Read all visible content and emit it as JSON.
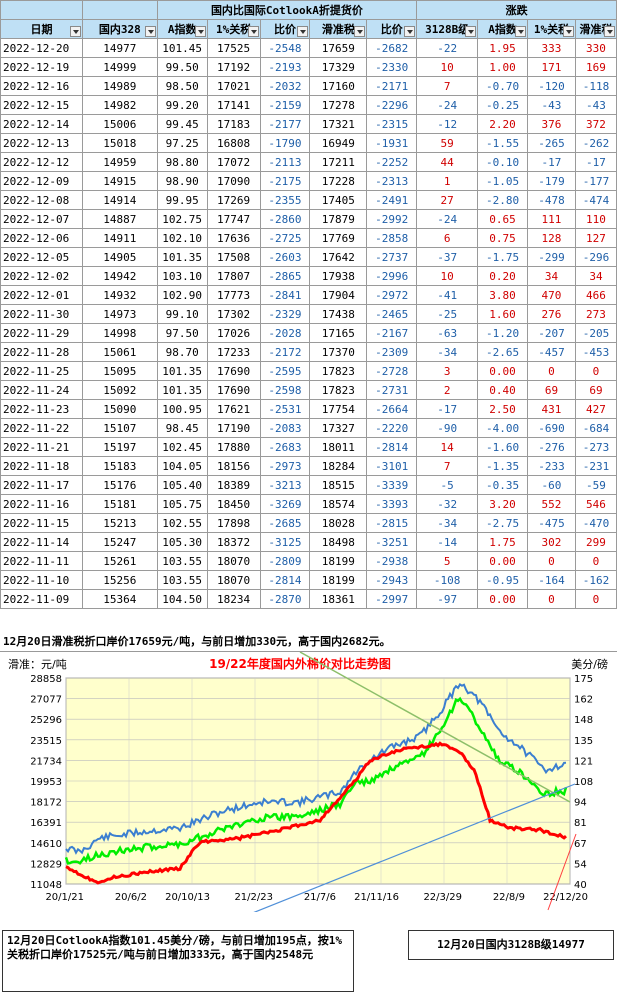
{
  "table": {
    "group_header": "国内比国际CotlookA折提货价",
    "change_header": "涨跌",
    "columns": [
      "日期",
      "国内328",
      "A指数",
      "1%关税",
      "比价",
      "滑准税",
      "比价",
      "3128B级",
      "A指数",
      "1%关税",
      "滑准税"
    ],
    "rows": [
      [
        "2022-12-20",
        "14977",
        "101.45",
        "17525",
        "-2548",
        "17659",
        "-2682",
        "-22",
        "1.95",
        "333",
        "330"
      ],
      [
        "2022-12-19",
        "14999",
        "99.50",
        "17192",
        "-2193",
        "17329",
        "-2330",
        "10",
        "1.00",
        "171",
        "169"
      ],
      [
        "2022-12-16",
        "14989",
        "98.50",
        "17021",
        "-2032",
        "17160",
        "-2171",
        "7",
        "-0.70",
        "-120",
        "-118"
      ],
      [
        "2022-12-15",
        "14982",
        "99.20",
        "17141",
        "-2159",
        "17278",
        "-2296",
        "-24",
        "-0.25",
        "-43",
        "-43"
      ],
      [
        "2022-12-14",
        "15006",
        "99.45",
        "17183",
        "-2177",
        "17321",
        "-2315",
        "-12",
        "2.20",
        "376",
        "372"
      ],
      [
        "2022-12-13",
        "15018",
        "97.25",
        "16808",
        "-1790",
        "16949",
        "-1931",
        "59",
        "-1.55",
        "-265",
        "-262"
      ],
      [
        "2022-12-12",
        "14959",
        "98.80",
        "17072",
        "-2113",
        "17211",
        "-2252",
        "44",
        "-0.10",
        "-17",
        "-17"
      ],
      [
        "2022-12-09",
        "14915",
        "98.90",
        "17090",
        "-2175",
        "17228",
        "-2313",
        "1",
        "-1.05",
        "-179",
        "-177"
      ],
      [
        "2022-12-08",
        "14914",
        "99.95",
        "17269",
        "-2355",
        "17405",
        "-2491",
        "27",
        "-2.80",
        "-478",
        "-474"
      ],
      [
        "2022-12-07",
        "14887",
        "102.75",
        "17747",
        "-2860",
        "17879",
        "-2992",
        "-24",
        "0.65",
        "111",
        "110"
      ],
      [
        "2022-12-06",
        "14911",
        "102.10",
        "17636",
        "-2725",
        "17769",
        "-2858",
        "6",
        "0.75",
        "128",
        "127"
      ],
      [
        "2022-12-05",
        "14905",
        "101.35",
        "17508",
        "-2603",
        "17642",
        "-2737",
        "-37",
        "-1.75",
        "-299",
        "-296"
      ],
      [
        "2022-12-02",
        "14942",
        "103.10",
        "17807",
        "-2865",
        "17938",
        "-2996",
        "10",
        "0.20",
        "34",
        "34"
      ],
      [
        "2022-12-01",
        "14932",
        "102.90",
        "17773",
        "-2841",
        "17904",
        "-2972",
        "-41",
        "3.80",
        "470",
        "466"
      ],
      [
        "2022-11-30",
        "14973",
        "99.10",
        "17302",
        "-2329",
        "17438",
        "-2465",
        "-25",
        "1.60",
        "276",
        "273"
      ],
      [
        "2022-11-29",
        "14998",
        "97.50",
        "17026",
        "-2028",
        "17165",
        "-2167",
        "-63",
        "-1.20",
        "-207",
        "-205"
      ],
      [
        "2022-11-28",
        "15061",
        "98.70",
        "17233",
        "-2172",
        "17370",
        "-2309",
        "-34",
        "-2.65",
        "-457",
        "-453"
      ],
      [
        "2022-11-25",
        "15095",
        "101.35",
        "17690",
        "-2595",
        "17823",
        "-2728",
        "3",
        "0.00",
        "0",
        "0"
      ],
      [
        "2022-11-24",
        "15092",
        "101.35",
        "17690",
        "-2598",
        "17823",
        "-2731",
        "2",
        "0.40",
        "69",
        "69"
      ],
      [
        "2022-11-23",
        "15090",
        "100.95",
        "17621",
        "-2531",
        "17754",
        "-2664",
        "-17",
        "2.50",
        "431",
        "427"
      ],
      [
        "2022-11-22",
        "15107",
        "98.45",
        "17190",
        "-2083",
        "17327",
        "-2220",
        "-90",
        "-4.00",
        "-690",
        "-684"
      ],
      [
        "2022-11-21",
        "15197",
        "102.45",
        "17880",
        "-2683",
        "18011",
        "-2814",
        "14",
        "-1.60",
        "-276",
        "-273"
      ],
      [
        "2022-11-18",
        "15183",
        "104.05",
        "18156",
        "-2973",
        "18284",
        "-3101",
        "7",
        "-1.35",
        "-233",
        "-231"
      ],
      [
        "2022-11-17",
        "15176",
        "105.40",
        "18389",
        "-3213",
        "18515",
        "-3339",
        "-5",
        "-0.35",
        "-60",
        "-59"
      ],
      [
        "2022-11-16",
        "15181",
        "105.75",
        "18450",
        "-3269",
        "18574",
        "-3393",
        "-32",
        "3.20",
        "552",
        "546"
      ],
      [
        "2022-11-15",
        "15213",
        "102.55",
        "17898",
        "-2685",
        "18028",
        "-2815",
        "-34",
        "-2.75",
        "-475",
        "-470"
      ],
      [
        "2022-11-14",
        "15247",
        "105.30",
        "18372",
        "-3125",
        "18498",
        "-3251",
        "-14",
        "1.75",
        "302",
        "299"
      ],
      [
        "2022-11-11",
        "15261",
        "103.55",
        "18070",
        "-2809",
        "18199",
        "-2938",
        "5",
        "0.00",
        "0",
        "0"
      ],
      [
        "2022-11-10",
        "15256",
        "103.55",
        "18070",
        "-2814",
        "18199",
        "-2943",
        "-108",
        "-0.95",
        "-164",
        "-162"
      ],
      [
        "2022-11-09",
        "15364",
        "104.50",
        "18234",
        "-2870",
        "18361",
        "-2997",
        "-97",
        "0.00",
        "0",
        "0"
      ]
    ]
  },
  "notes": {
    "top": "12月20日滑准税折口岸价17659元/吨，与前日增加330元，高于国内2682元。",
    "bottom_left": "12月20日CotlookA指数101.45美分/磅，与前日增加195点，按1%关税折口岸价17525元/吨与前日增加333元，高于国内2548元",
    "bottom_right": "12月20日国内3128B级14977"
  },
  "chart_data": {
    "type": "line",
    "title": "19/22年度国内外棉价对比走势图",
    "ylabel_left": "滑准：元/吨",
    "ylabel_right": "美分/磅",
    "yticks_left": [
      "28858",
      "27077",
      "25296",
      "23515",
      "21734",
      "19953",
      "18172",
      "16391",
      "14610",
      "12829",
      "11048"
    ],
    "yticks_right": [
      "175",
      "162",
      "148",
      "135",
      "121",
      "108",
      "94",
      "81",
      "67",
      "54",
      "40"
    ],
    "xticks": [
      "20/1/21",
      "20/6/2",
      "20/10/13",
      "21/2/23",
      "21/7/6",
      "21/11/16",
      "22/3/29",
      "22/8/9",
      "22/12/20"
    ],
    "colors": {
      "red": "#ff0000",
      "green": "#00ee00",
      "blue": "#3b7fd0",
      "plot_bg": "#ffffcc",
      "trend_green": "#8dbf6a",
      "trend_blue": "#4f8fd8",
      "trend_red": "#ff4040"
    }
  }
}
